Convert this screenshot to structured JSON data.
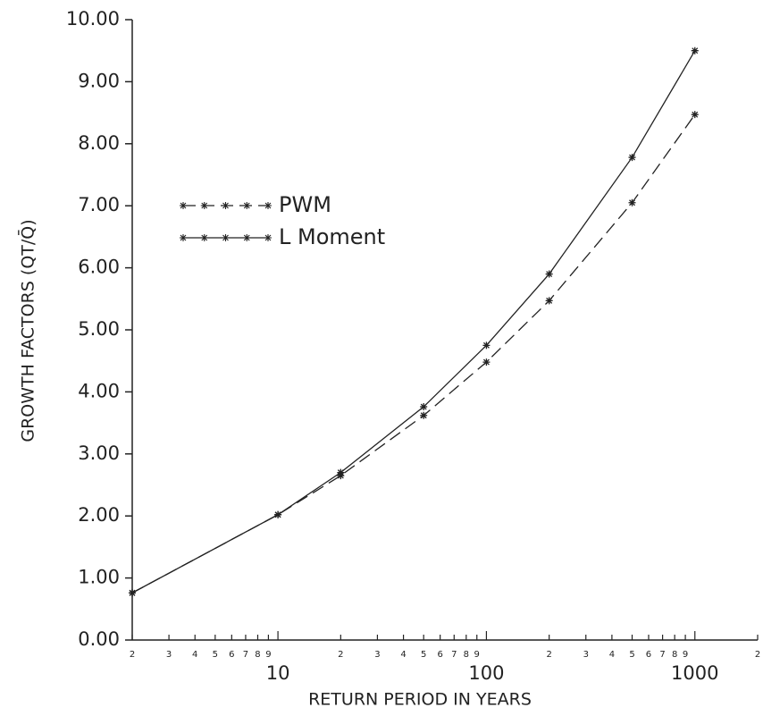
{
  "chart_data": {
    "type": "line",
    "xlabel": "RETURN PERIOD IN YEARS",
    "ylabel": "GROWTH FACTORS (QT/Q̄)",
    "x": [
      2,
      10,
      20,
      50,
      100,
      200,
      500,
      1000
    ],
    "series": [
      {
        "name": "PWM",
        "color": "#222222",
        "dash": true,
        "values": [
          0.76,
          2.02,
          2.65,
          3.62,
          4.48,
          5.47,
          7.05,
          8.47
        ]
      },
      {
        "name": "L Moment",
        "color": "#222222",
        "dash": false,
        "values": [
          0.76,
          2.02,
          2.7,
          3.76,
          4.75,
          5.9,
          7.78,
          9.5
        ]
      }
    ],
    "xscale": "log",
    "xlim": [
      2,
      2000
    ],
    "xticks": [
      {
        "value": 2,
        "label": "2"
      },
      3,
      4,
      5,
      6,
      7,
      8,
      9,
      10,
      {
        "value": 20,
        "label": "2"
      },
      {
        "value": 30,
        "label": "3"
      },
      {
        "value": 40,
        "label": "4"
      },
      {
        "value": 50,
        "label": "5"
      },
      {
        "value": 60,
        "label": "6"
      },
      {
        "value": 70,
        "label": "7"
      },
      {
        "value": 80,
        "label": "8"
      },
      {
        "value": 90,
        "label": "9"
      },
      100,
      {
        "value": 200,
        "label": "2"
      },
      {
        "value": 300,
        "label": "3"
      },
      {
        "value": 400,
        "label": "4"
      },
      {
        "value": 500,
        "label": "5"
      },
      {
        "value": 600,
        "label": "6"
      },
      {
        "value": 700,
        "label": "7"
      },
      {
        "value": 800,
        "label": "8"
      },
      {
        "value": 900,
        "label": "9"
      },
      1000,
      {
        "value": 2000,
        "label": "2"
      }
    ],
    "ylim": [
      0,
      10
    ],
    "yticks": [
      {
        "value": 0,
        "label": "0.00"
      },
      {
        "value": 1,
        "label": "1.00"
      },
      {
        "value": 2,
        "label": "2.00"
      },
      {
        "value": 3,
        "label": "3.00"
      },
      {
        "value": 4,
        "label": "4.00"
      },
      {
        "value": 5,
        "label": "5.00"
      },
      {
        "value": 6,
        "label": "6.00"
      },
      {
        "value": 7,
        "label": "7.00"
      },
      {
        "value": 8,
        "label": "8.00"
      },
      {
        "value": 9,
        "label": "9.00"
      },
      {
        "value": 10,
        "label": "10.00"
      }
    ],
    "grid": false,
    "legend": "upper left"
  }
}
